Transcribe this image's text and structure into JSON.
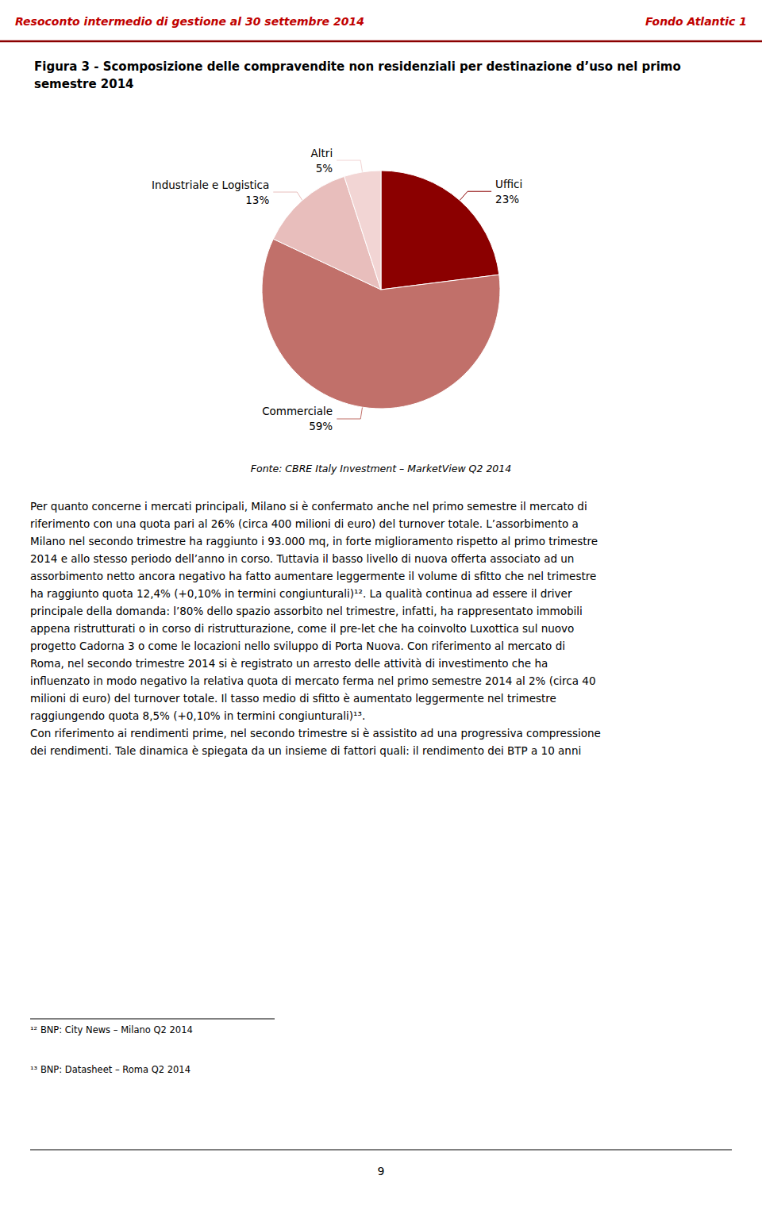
{
  "chart_data": {
    "type": "pie",
    "title": "Figura 3 - Scomposizione delle compravendite non residenziali per destinazione d’uso nel primo semestre 2014",
    "categories": [
      "Uffici",
      "Commerciale",
      "Industriale e Logistica",
      "Altri"
    ],
    "values": [
      23,
      59,
      13,
      5
    ],
    "value_labels": [
      "23%",
      "59%",
      "13%",
      "5%"
    ],
    "colors": [
      "#8B0000",
      "#C1706A",
      "#E8BEBC",
      "#F2D5D4"
    ],
    "data_labels": true,
    "annotations": [
      "Resoconto intermedio di gestione al 30 settembre 2014",
      "Fondo Atlantic 1",
      "Fonte: CBRE Italy Investment – MarketView Q2 2014",
      "Per quanto concerne i mercati principali, Milano si è confermato anche nel primo semestre il mercato di\nriferimento con una quota pari al 26% (circa 400 milioni di euro) del turnover totale. L’assorbimento a\nMilano nel secondo trimestre ha raggiunto i 93.000 mq, in forte miglioramento rispetto al primo trimestre\n2014 e allo stesso periodo dell’anno in corso. Tuttavia il basso livello di nuova offerta associato ad un\nassorbimento netto ancora negativo ha fatto aumentare leggermente il volume di sfitto che nel trimestre\nha raggiunto quota 12,4% (+0,10% in termini congiunturali)¹². La qualità continua ad essere il driver\nprincipale della domanda: l’80% dello spazio assorbito nel trimestre, infatti, ha rappresentato immobili\nappena ristrutturati o in corso di ristrutturazione, come il pre-let che ha coinvolto Luxottica sul nuovo\nprogetto Cadorna 3 o come le locazioni nello sviluppo di Porta Nuova. Con riferimento al mercato di\nRoma, nel secondo trimestre 2014 si è registrato un arresto delle attività di investimento che ha\ninfluenzato in modo negativo la relativa quota di mercato ferma nel primo semestre 2014 al 2% (circa 40\nmilioni di euro) del turnover totale. Il tasso medio di sfitto è aumentato leggermente nel trimestre\nraggiungendo quota 8,5% (+0,10% in termini congiunturali)¹³.\nCon riferimento ai rendimenti prime, nel secondo trimestre si è assistito ad una progressiva compressione\ndei rendimenti. Tale dinamica è spiegata da un insieme di fattori quali: il rendimento dei BTP a 10 anni",
      "¹² BNP: City News – Milano Q2 2014",
      "¹³ BNP: Datasheet – Roma Q2 2014",
      "9"
    ]
  }
}
